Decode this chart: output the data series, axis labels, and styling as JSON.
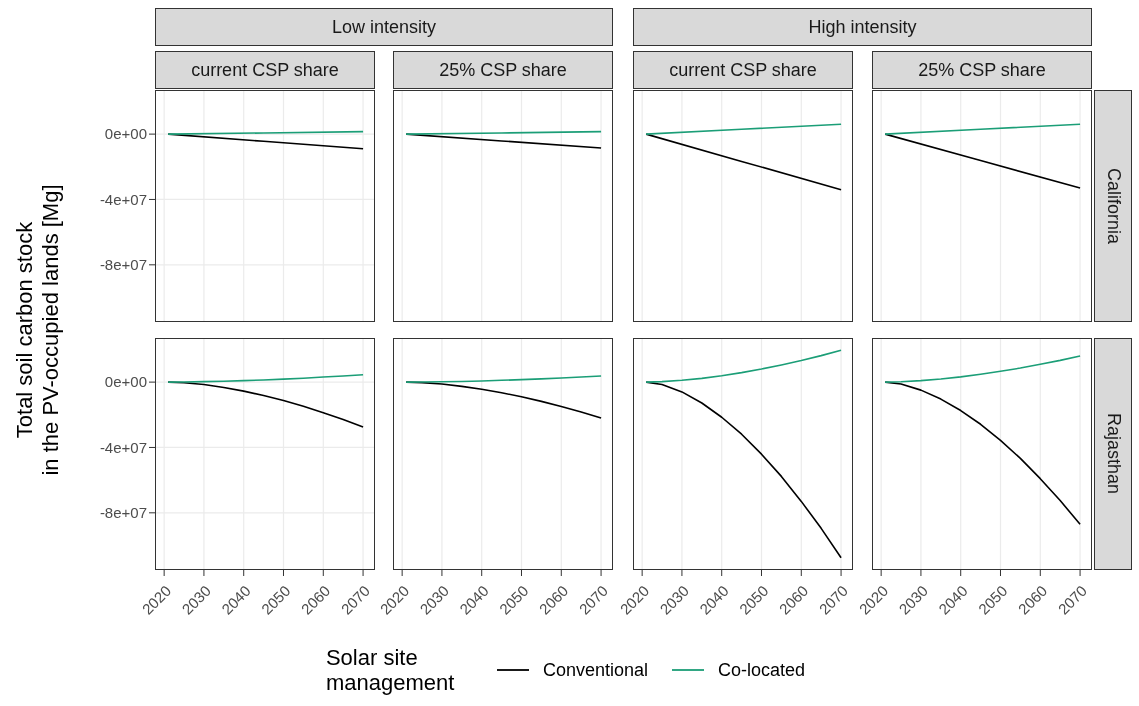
{
  "chart_data": [
    {
      "type": "line",
      "title": "current CSP share",
      "annotations": [
        "Low intensity"
      ],
      "ylabel": "Total soil carbon stock\nin the PV-occupied lands [Mg]",
      "legend_title": "Solar site management",
      "legend": "bottom",
      "grid": true,
      "tick_labels": "y",
      "xlim": [
        2017.7,
        2073
      ],
      "ylim": [
        -115000000,
        27000000
      ],
      "xticks": [
        2020,
        2030,
        2040,
        2050,
        2060,
        2070
      ],
      "yticks": [
        {
          "value": 0,
          "label": "0e+00"
        },
        {
          "value": -40000000,
          "label": "-4e+07"
        },
        {
          "value": -80000000,
          "label": "-8e+07"
        }
      ],
      "x": [
        2021,
        2045,
        2070
      ],
      "series": [
        {
          "name": "Conventional",
          "color": "#000000",
          "values": [
            0,
            -4400000,
            -9000000
          ]
        },
        {
          "name": "Co-located",
          "color": "#1b9e77",
          "values": [
            0,
            700000,
            1500000
          ]
        }
      ]
    },
    {
      "type": "line",
      "title": "25% CSP share",
      "grid": true,
      "tick_labels": false,
      "xlim": [
        2017.7,
        2073
      ],
      "ylim": [
        -115000000,
        27000000
      ],
      "xticks": [
        2020,
        2030,
        2040,
        2050,
        2060,
        2070
      ],
      "yticks": [
        {
          "value": 0,
          "label": null
        },
        {
          "value": -40000000,
          "label": null
        },
        {
          "value": -80000000,
          "label": null
        }
      ],
      "x": [
        2021,
        2045,
        2070
      ],
      "series": [
        {
          "color": "#000000",
          "values": [
            0,
            -4200000,
            -8500000
          ]
        },
        {
          "color": "#1b9e77",
          "values": [
            0,
            700000,
            1500000
          ]
        }
      ]
    },
    {
      "type": "line",
      "title": "current CSP share",
      "annotations": [
        "High intensity"
      ],
      "grid": true,
      "tick_labels": false,
      "xlim": [
        2017.7,
        2073
      ],
      "ylim": [
        -115000000,
        27000000
      ],
      "xticks": [
        2020,
        2030,
        2040,
        2050,
        2060,
        2070
      ],
      "yticks": [
        {
          "value": 0,
          "label": null
        },
        {
          "value": -40000000,
          "label": null
        },
        {
          "value": -80000000,
          "label": null
        }
      ],
      "x": [
        2021,
        2045,
        2070
      ],
      "series": [
        {
          "color": "#000000",
          "values": [
            0,
            -16700000,
            -34000000
          ]
        },
        {
          "color": "#1b9e77",
          "values": [
            0,
            3000000,
            6000000
          ]
        }
      ]
    },
    {
      "type": "line",
      "title": "25% CSP share",
      "annotations": [
        "California"
      ],
      "grid": true,
      "tick_labels": false,
      "xlim": [
        2017.7,
        2073
      ],
      "ylim": [
        -115000000,
        27000000
      ],
      "xticks": [
        2020,
        2030,
        2040,
        2050,
        2060,
        2070
      ],
      "yticks": [
        {
          "value": 0,
          "label": null
        },
        {
          "value": -40000000,
          "label": null
        },
        {
          "value": -80000000,
          "label": null
        }
      ],
      "x": [
        2021,
        2045,
        2070
      ],
      "series": [
        {
          "color": "#000000",
          "values": [
            0,
            -16200000,
            -33000000
          ]
        },
        {
          "color": "#1b9e77",
          "values": [
            0,
            3000000,
            6000000
          ]
        }
      ]
    },
    {
      "type": "line",
      "grid": true,
      "xlim": [
        2017.7,
        2073
      ],
      "ylim": [
        -115000000,
        27000000
      ],
      "xticks": [
        2020,
        2030,
        2040,
        2050,
        2060,
        2070
      ],
      "yticks": [
        {
          "value": 0,
          "label": "0e+00"
        },
        {
          "value": -40000000,
          "label": "-4e+07"
        },
        {
          "value": -80000000,
          "label": "-8e+07"
        }
      ],
      "x": [
        2021,
        2025,
        2030,
        2035,
        2040,
        2045,
        2050,
        2055,
        2060,
        2065,
        2070
      ],
      "series": [
        {
          "color": "#000000",
          "values": [
            0,
            -400000,
            -1500000,
            -3300000,
            -5500000,
            -8200000,
            -11300000,
            -14800000,
            -18700000,
            -22900000,
            -27500000
          ]
        },
        {
          "color": "#1b9e77",
          "values": [
            0,
            100000,
            300000,
            500000,
            900000,
            1300000,
            1800000,
            2400000,
            3100000,
            3700000,
            4500000
          ]
        }
      ]
    },
    {
      "type": "line",
      "grid": true,
      "tick_labels": "x",
      "xlim": [
        2017.7,
        2073
      ],
      "ylim": [
        -115000000,
        27000000
      ],
      "xticks": [
        2020,
        2030,
        2040,
        2050,
        2060,
        2070
      ],
      "yticks": [
        {
          "value": 0,
          "label": null
        },
        {
          "value": -40000000,
          "label": null
        },
        {
          "value": -80000000,
          "label": null
        }
      ],
      "x": [
        2021,
        2025,
        2030,
        2035,
        2040,
        2045,
        2050,
        2055,
        2060,
        2065,
        2070
      ],
      "series": [
        {
          "color": "#000000",
          "values": [
            0,
            -300000,
            -1200000,
            -2600000,
            -4400000,
            -6500000,
            -9000000,
            -11800000,
            -14900000,
            -18300000,
            -22000000
          ]
        },
        {
          "color": "#1b9e77",
          "values": [
            0,
            100000,
            200000,
            400000,
            700000,
            1100000,
            1500000,
            2000000,
            2500000,
            3100000,
            3700000
          ]
        }
      ]
    },
    {
      "type": "line",
      "grid": true,
      "tick_labels": "x",
      "xlim": [
        2017.7,
        2073
      ],
      "ylim": [
        -115000000,
        27000000
      ],
      "xticks": [
        2020,
        2030,
        2040,
        2050,
        2060,
        2070
      ],
      "yticks": [
        {
          "value": 0,
          "label": null
        },
        {
          "value": -40000000,
          "label": null
        },
        {
          "value": -80000000,
          "label": null
        }
      ],
      "x": [
        2021,
        2025,
        2030,
        2035,
        2040,
        2045,
        2050,
        2055,
        2060,
        2065,
        2070
      ],
      "series": [
        {
          "color": "#000000",
          "values": [
            0,
            -1500000,
            -6000000,
            -12800000,
            -21500000,
            -31900000,
            -44100000,
            -57700000,
            -73000000,
            -89500000,
            -107500000
          ]
        },
        {
          "color": "#1b9e77",
          "values": [
            0,
            300000,
            1100000,
            2300000,
            3900000,
            5800000,
            8000000,
            10500000,
            13200000,
            16200000,
            19500000
          ]
        }
      ]
    },
    {
      "type": "line",
      "annotations": [
        "Rajasthan"
      ],
      "grid": true,
      "tick_labels": "x",
      "xlim": [
        2017.7,
        2073
      ],
      "ylim": [
        -115000000,
        27000000
      ],
      "xticks": [
        2020,
        2030,
        2040,
        2050,
        2060,
        2070
      ],
      "yticks": [
        {
          "value": 0,
          "label": null
        },
        {
          "value": -40000000,
          "label": null
        },
        {
          "value": -80000000,
          "label": null
        }
      ],
      "x": [
        2021,
        2025,
        2030,
        2035,
        2040,
        2045,
        2050,
        2055,
        2060,
        2065,
        2070
      ],
      "series": [
        {
          "color": "#000000",
          "values": [
            0,
            -1200000,
            -4900000,
            -10400000,
            -17400000,
            -25800000,
            -35700000,
            -46700000,
            -59100000,
            -72500000,
            -87000000
          ]
        },
        {
          "color": "#1b9e77",
          "values": [
            0,
            200000,
            900000,
            1900000,
            3200000,
            4800000,
            6600000,
            8600000,
            10900000,
            13300000,
            16000000
          ]
        }
      ]
    }
  ]
}
